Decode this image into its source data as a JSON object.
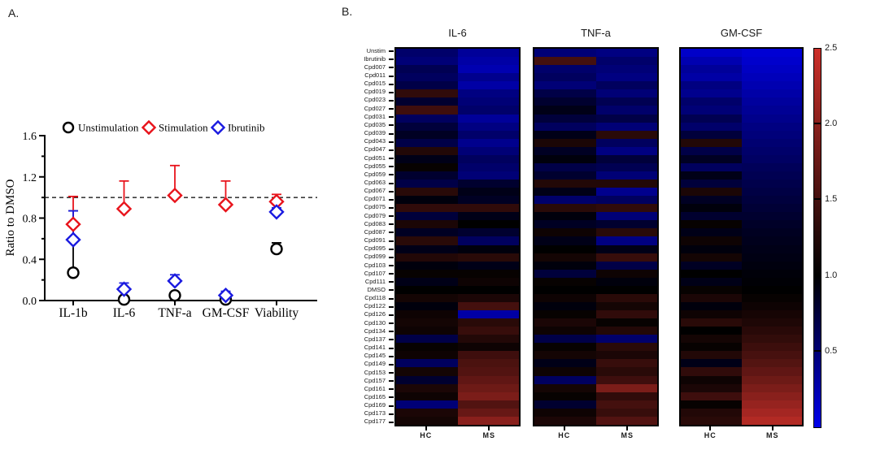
{
  "figure_labels": {
    "a": "A.",
    "b": "B."
  },
  "chart_data": [
    {
      "type": "scatter",
      "title": "",
      "xlabel": "",
      "ylabel": "Ratio to DMSO",
      "ylim": [
        0,
        1.6
      ],
      "yticks": [
        0.0,
        0.4,
        0.8,
        1.2,
        1.6
      ],
      "ytick_labels": [
        "0.0",
        "0.4",
        "0.8",
        "1.2",
        "1.6"
      ],
      "minor_step": 0.2,
      "reference_line": 1.0,
      "grid": false,
      "legend_position": "top",
      "categories": [
        "IL-1b",
        "IL-6",
        "TNF-a",
        "GM-CSF",
        "Viability"
      ],
      "series": [
        {
          "name": "Unstimulation",
          "marker": "circle",
          "color": "#000000",
          "values": [
            0.27,
            0.01,
            0.05,
            0.01,
            0.5
          ],
          "err_up": [
            0.6,
            0.02,
            0.03,
            0.02,
            0.06
          ]
        },
        {
          "name": "Stimulation",
          "marker": "diamond",
          "color": "#e8131b",
          "values": [
            0.74,
            0.89,
            1.02,
            0.93,
            0.96
          ],
          "err_up": [
            0.27,
            0.27,
            0.29,
            0.23,
            0.07
          ]
        },
        {
          "name": "Ibrutinib",
          "marker": "diamond",
          "color": "#1b1be0",
          "values": [
            0.59,
            0.11,
            0.19,
            0.05,
            0.86
          ],
          "err_up": [
            0.28,
            0.06,
            0.06,
            0.04,
            0.04
          ]
        }
      ]
    },
    {
      "type": "heatmap",
      "titles": [
        "IL-6",
        "TNF-a",
        "GM-CSF"
      ],
      "columns": [
        "HC",
        "MS"
      ],
      "rows": [
        "Unstim",
        "Ibrutinib",
        "Cpd007",
        "Cpd011",
        "Cpd015",
        "Cpd019",
        "Cpd023",
        "Cpd027",
        "Cpd031",
        "Cpd035",
        "Cpd039",
        "Cpd043",
        "Cpd047",
        "Cpd051",
        "Cpd055",
        "Cpd059",
        "Cpd063",
        "Cpd067",
        "Cpd071",
        "Cpd075",
        "Cpd079",
        "Cpd083",
        "Cpd087",
        "Cpd091",
        "Cpd095",
        "Cpd099",
        "Cpd103",
        "Cpd107",
        "Cpd111",
        "DMSO",
        "Cpd118",
        "Cpd122",
        "Cpd126",
        "Cpd130",
        "Cpd134",
        "Cpd137",
        "Cpd141",
        "Cpd145",
        "Cpd149",
        "Cpd153",
        "Cpd157",
        "Cpd161",
        "Cpd165",
        "Cpd169",
        "Cpd173",
        "Cpd177"
      ],
      "scale": {
        "min": 0,
        "max": 2.5,
        "center": 1.0,
        "ticks": [
          2.5,
          2.0,
          1.5,
          1.0,
          0.5
        ],
        "tick_labels": [
          "2.5",
          "2.0",
          "1.5",
          "1.0",
          "0.5"
        ],
        "high_color": "#cd302a",
        "mid_color": "#000000",
        "low_color": "#0000eb"
      },
      "values": {
        "IL-6": {
          "HC": [
            0.55,
            0.5,
            0.65,
            0.6,
            0.7,
            1.35,
            0.8,
            1.45,
            0.6,
            0.75,
            0.85,
            0.7,
            1.25,
            0.9,
            1.05,
            0.8,
            0.7,
            1.3,
            0.95,
            1.35,
            0.75,
            1.2,
            0.85,
            1.3,
            0.9,
            1.25,
            0.95,
            1.05,
            0.9,
            1.0,
            1.15,
            0.95,
            1.1,
            1.15,
            1.1,
            0.7,
            1.05,
            1.1,
            0.6,
            1.15,
            0.8,
            1.2,
            1.1,
            0.5,
            1.2,
            1.15
          ],
          "MS": [
            0.35,
            0.3,
            0.25,
            0.4,
            0.3,
            0.45,
            0.5,
            0.55,
            0.35,
            0.45,
            0.55,
            0.4,
            0.5,
            0.6,
            0.55,
            0.5,
            0.8,
            0.9,
            0.85,
            1.35,
            0.9,
            1.0,
            0.8,
            0.6,
            0.95,
            1.3,
            0.9,
            1.05,
            1.1,
            1.0,
            1.2,
            1.5,
            0.3,
            1.3,
            1.4,
            1.25,
            1.1,
            1.45,
            1.55,
            1.6,
            1.7,
            1.8,
            1.9,
            1.6,
            1.75,
            2.0
          ]
        },
        "TNF-a": {
          "HC": [
            0.5,
            1.5,
            0.55,
            0.6,
            0.5,
            0.7,
            0.8,
            0.9,
            0.75,
            0.6,
            0.9,
            1.2,
            0.85,
            0.95,
            0.7,
            0.8,
            1.25,
            0.9,
            0.55,
            1.3,
            0.95,
            0.85,
            1.1,
            0.9,
            1.0,
            1.15,
            0.95,
            0.75,
            1.05,
            1.0,
            1.1,
            0.95,
            1.05,
            1.2,
            1.1,
            0.7,
            1.05,
            1.15,
            0.9,
            1.1,
            0.6,
            1.15,
            1.05,
            0.8,
            1.1,
            1.2
          ],
          "MS": [
            0.45,
            0.55,
            0.5,
            0.45,
            0.6,
            0.5,
            0.65,
            0.55,
            0.7,
            0.5,
            1.3,
            0.6,
            0.45,
            0.75,
            0.65,
            0.5,
            1.25,
            0.4,
            0.6,
            1.35,
            0.5,
            0.8,
            1.3,
            0.45,
            0.9,
            1.4,
            0.7,
            1.1,
            0.95,
            1.0,
            1.3,
            1.15,
            1.35,
            1.05,
            1.25,
            0.55,
            1.3,
            1.2,
            1.4,
            1.3,
            1.45,
            1.9,
            1.35,
            1.5,
            1.4,
            1.6
          ]
        },
        "GM-CSF": {
          "HC": [
            0.15,
            0.25,
            0.35,
            0.3,
            0.45,
            0.4,
            0.55,
            0.5,
            0.65,
            0.55,
            0.75,
            1.25,
            0.7,
            0.85,
            0.6,
            0.9,
            0.75,
            1.2,
            0.85,
            0.95,
            0.8,
            1.05,
            0.9,
            1.1,
            0.95,
            1.15,
            0.85,
            1.0,
            0.9,
            1.05,
            1.2,
            0.95,
            1.1,
            1.3,
            1.0,
            1.15,
            1.05,
            1.25,
            0.9,
            1.35,
            1.1,
            1.2,
            1.45,
            1.05,
            1.25,
            1.3
          ],
          "MS": [
            0.1,
            0.13,
            0.17,
            0.21,
            0.25,
            0.29,
            0.33,
            0.37,
            0.41,
            0.45,
            0.48,
            0.52,
            0.55,
            0.58,
            0.62,
            0.65,
            0.68,
            0.71,
            0.74,
            0.77,
            0.8,
            0.83,
            0.86,
            0.88,
            0.9,
            0.92,
            0.94,
            0.96,
            0.98,
            1.0,
            1.05,
            1.1,
            1.16,
            1.22,
            1.29,
            1.36,
            1.44,
            1.52,
            1.61,
            1.7,
            1.8,
            1.9,
            2.0,
            2.1,
            2.2,
            2.3
          ]
        }
      }
    }
  ]
}
